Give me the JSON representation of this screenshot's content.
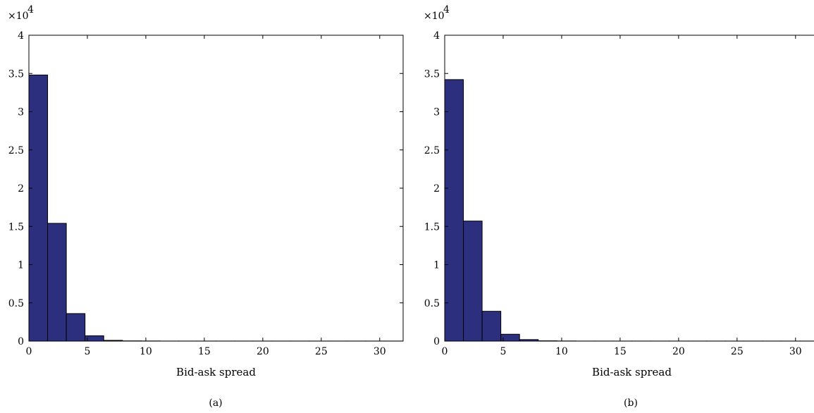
{
  "chart_data": [
    {
      "type": "bar",
      "xlabel": "Bid-ask spread",
      "ylabel": "",
      "caption": "(a)",
      "y_exponent_label": "×10",
      "y_exponent_power": "4",
      "xlim": [
        0,
        32
      ],
      "ylim": [
        0,
        4
      ],
      "xticks": [
        "0",
        "5",
        "10",
        "15",
        "20",
        "25",
        "30"
      ],
      "yticks": [
        "0",
        "0.5",
        "1",
        "1.5",
        "2",
        "2.5",
        "3",
        "3.5",
        "4"
      ],
      "bin_edges": [
        0,
        1.6,
        3.2,
        4.8,
        6.4,
        8.0,
        9.6,
        11.2,
        12.8,
        14.4,
        16.0,
        17.6,
        19.2,
        20.8,
        22.4,
        24.0,
        25.6,
        27.2,
        28.8,
        30.4,
        32.0
      ],
      "values": [
        3.48,
        1.54,
        0.36,
        0.07,
        0.01,
        0.003,
        0.002,
        0.001,
        0.001,
        0.001,
        0.001,
        0.001,
        0.001,
        0.001,
        0.001,
        0.001,
        0.001,
        0.001,
        0.001,
        0.001
      ],
      "grid": false,
      "bar_color": "#2c2f7e"
    },
    {
      "type": "bar",
      "xlabel": "Bid-ask spread",
      "ylabel": "",
      "caption": "(b)",
      "y_exponent_label": "×10",
      "y_exponent_power": "4",
      "xlim": [
        0,
        32
      ],
      "ylim": [
        0,
        4
      ],
      "xticks": [
        "0",
        "5",
        "10",
        "15",
        "20",
        "25",
        "30"
      ],
      "yticks": [
        "0",
        "0.5",
        "1",
        "1.5",
        "2",
        "2.5",
        "3",
        "3.5",
        "4"
      ],
      "bin_edges": [
        0,
        1.6,
        3.2,
        4.8,
        6.4,
        8.0,
        9.6,
        11.2,
        12.8,
        14.4,
        16.0,
        17.6,
        19.2,
        20.8,
        22.4,
        24.0,
        25.6,
        27.2,
        28.8,
        30.4,
        32.0
      ],
      "values": [
        3.42,
        1.57,
        0.39,
        0.09,
        0.02,
        0.004,
        0.002,
        0.001,
        0.001,
        0.001,
        0.001,
        0.001,
        0.001,
        0.001,
        0.001,
        0.001,
        0.001,
        0.001,
        0.001,
        0.001
      ],
      "grid": false,
      "bar_color": "#2c2f7e"
    }
  ]
}
